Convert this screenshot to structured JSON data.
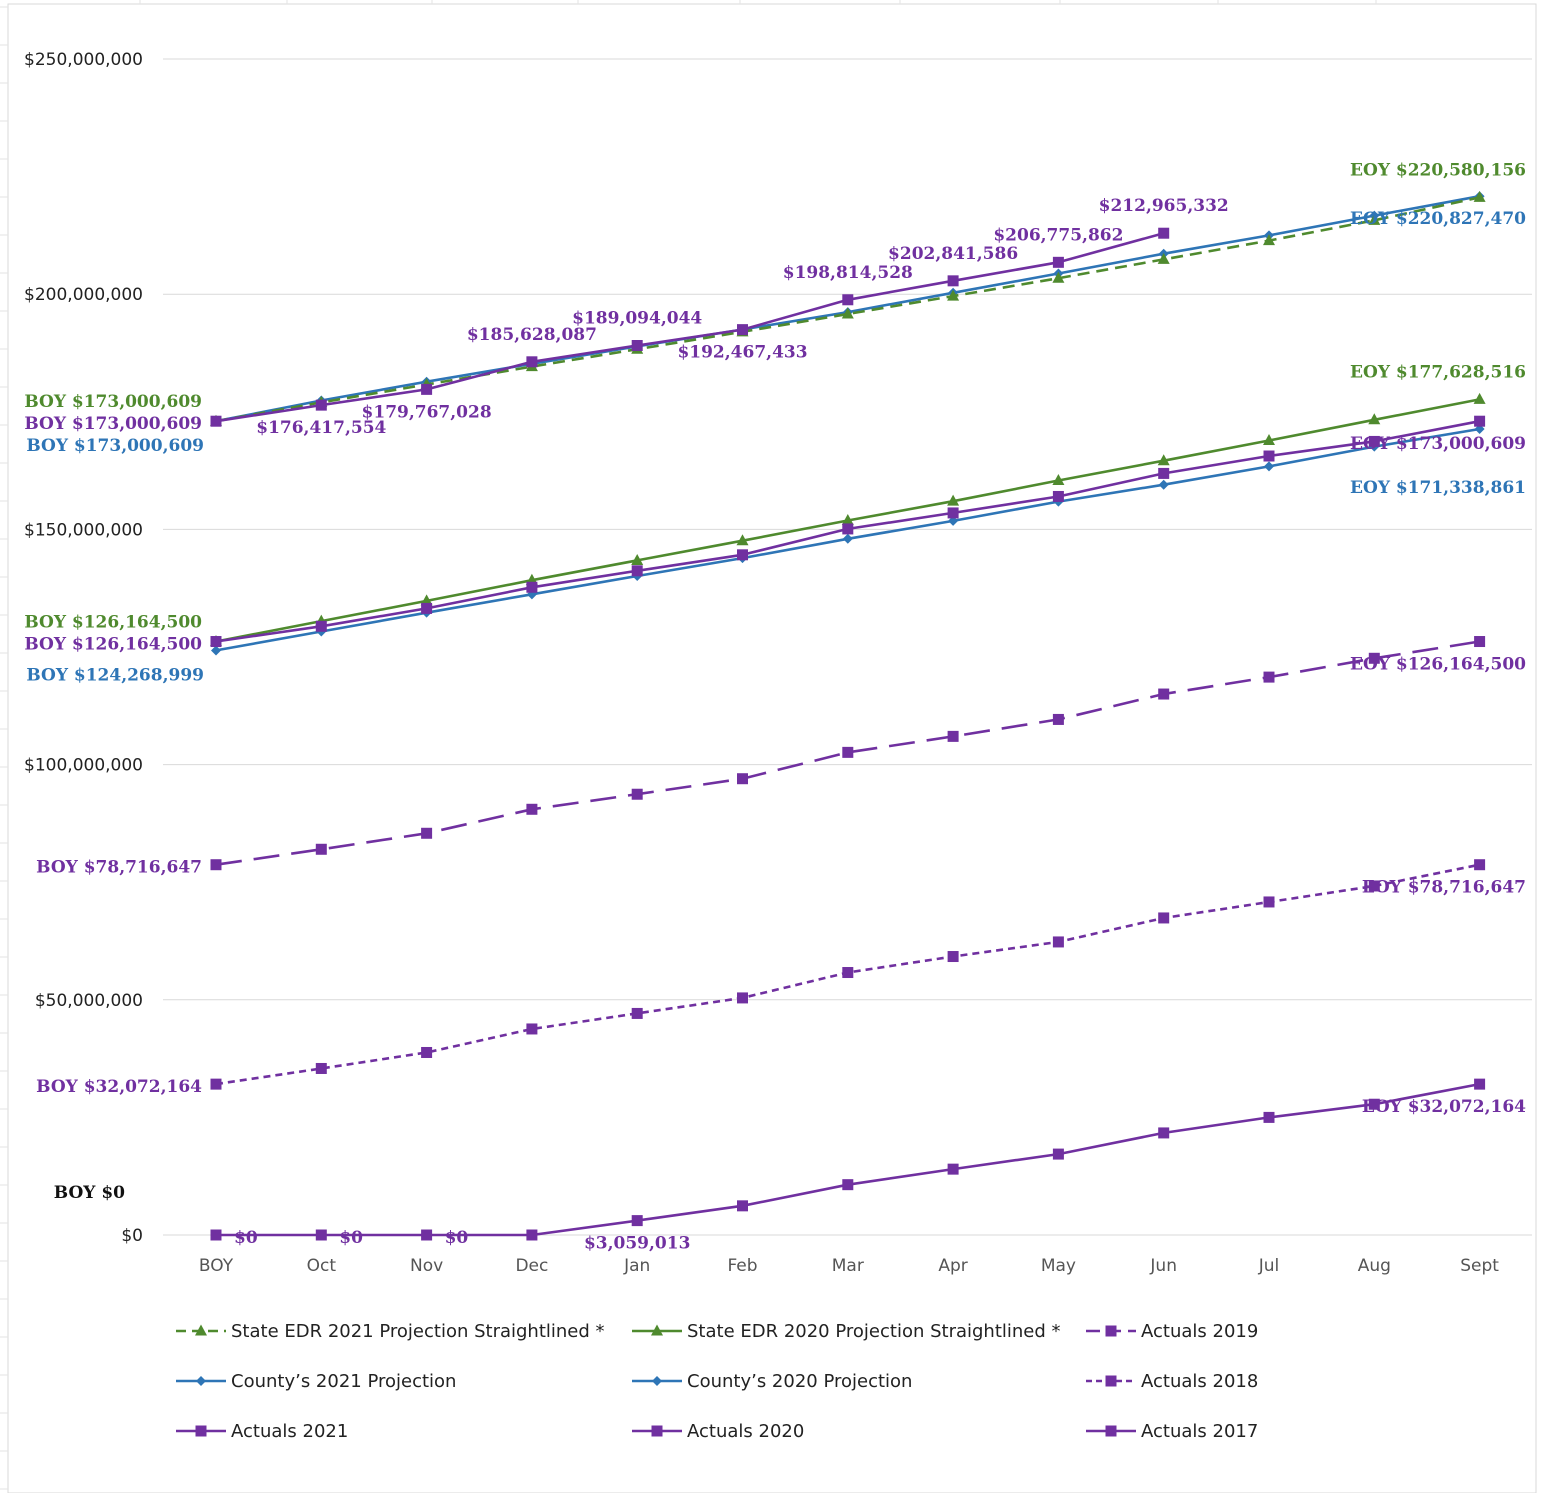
{
  "chart_data": {
    "type": "line",
    "categories": [
      "BOY",
      "Oct",
      "Nov",
      "Dec",
      "Jan",
      "Feb",
      "Mar",
      "Apr",
      "May",
      "Jun",
      "Jul",
      "Aug",
      "Sept"
    ],
    "ylim": [
      0,
      250000000
    ],
    "yticks": [
      0,
      50000000,
      100000000,
      150000000,
      200000000,
      250000000
    ],
    "ytick_labels": [
      "$0",
      "$50,000,000",
      "$100,000,000",
      "$150,000,000",
      "$200,000,000",
      "$250,000,000"
    ],
    "grid": true,
    "legend_position": "bottom",
    "colors": {
      "green": "#4f8a2e",
      "blue": "#2e75b6",
      "purple": "#7030a0"
    },
    "series": [
      {
        "name": "State EDR 2021 Projection Straightlined *",
        "color": "#4f8a2e",
        "dash": "dash",
        "marker": "triangle",
        "values": [
          173000609,
          177000000,
          180800000,
          184600000,
          188300000,
          192000000,
          195800000,
          199600000,
          203400000,
          207400000,
          211400000,
          215700000,
          220580156
        ]
      },
      {
        "name": "State EDR 2020 Projection Straightlined *",
        "color": "#4f8a2e",
        "dash": "solid",
        "marker": "triangle",
        "values": [
          126164500,
          130500000,
          134800000,
          139200000,
          143400000,
          147600000,
          151900000,
          156000000,
          160400000,
          164600000,
          168900000,
          173300000,
          177628516
        ]
      },
      {
        "name": "Actuals 2019",
        "color": "#7030a0",
        "dash": "longdash",
        "marker": "square",
        "values": [
          78716647,
          82000000,
          85400000,
          90500000,
          93700000,
          97000000,
          102600000,
          106000000,
          109600000,
          115000000,
          118600000,
          122600000,
          126164500
        ]
      },
      {
        "name": "County’s 2021 Projection",
        "color": "#2e75b6",
        "dash": "solid",
        "marker": "diamond",
        "values": [
          173000609,
          177400000,
          181400000,
          185200000,
          188900000,
          192500000,
          196200000,
          200300000,
          204400000,
          208600000,
          212500000,
          216700000,
          220827470
        ]
      },
      {
        "name": "County’s 2020 Projection",
        "color": "#2e75b6",
        "dash": "solid",
        "marker": "diamond",
        "values": [
          124268999,
          128300000,
          132300000,
          136200000,
          140100000,
          143900000,
          148000000,
          151800000,
          155900000,
          159500000,
          163400000,
          167600000,
          171338861
        ]
      },
      {
        "name": "Actuals 2018",
        "color": "#7030a0",
        "dash": "shortdash",
        "marker": "square",
        "values": [
          32072164,
          35400000,
          38800000,
          43800000,
          47100000,
          50400000,
          55800000,
          59200000,
          62300000,
          67400000,
          70800000,
          74200000,
          78716647
        ]
      },
      {
        "name": "Actuals 2021",
        "color": "#7030a0",
        "dash": "solid",
        "marker": "square",
        "values": [
          173000609,
          176417554,
          179767028,
          185628087,
          189094044,
          192467433,
          198814528,
          202841586,
          206775862,
          212965332,
          null,
          null,
          null
        ]
      },
      {
        "name": "Actuals 2020",
        "color": "#7030a0",
        "dash": "solid",
        "marker": "square",
        "values": [
          126164500,
          129400000,
          133200000,
          137700000,
          141200000,
          144600000,
          150100000,
          153500000,
          157000000,
          161900000,
          165600000,
          168700000,
          173000609
        ]
      },
      {
        "name": "Actuals 2017",
        "color": "#7030a0",
        "dash": "solid",
        "marker": "square",
        "values": [
          0,
          0,
          0,
          0,
          3059013,
          6200000,
          10700000,
          14000000,
          17200000,
          21700000,
          25000000,
          27800000,
          32072164
        ]
      }
    ],
    "annotations": [
      {
        "text": "EOY $220,580,156",
        "color": "#4f8a2e",
        "x": "Sept",
        "y": 220580156,
        "pos": "above"
      },
      {
        "text": "EOY $220,827,470",
        "color": "#2e75b6",
        "x": "Sept",
        "y": 220827470,
        "pos": "below"
      },
      {
        "text": "$212,965,332",
        "color": "#7030a0",
        "x": "Jun",
        "y": 212965332,
        "pos": "above"
      },
      {
        "text": "$206,775,862",
        "color": "#7030a0",
        "x": "May",
        "y": 206775862,
        "pos": "above"
      },
      {
        "text": "$202,841,586",
        "color": "#7030a0",
        "x": "Apr",
        "y": 202841586,
        "pos": "above"
      },
      {
        "text": "$198,814,528",
        "color": "#7030a0",
        "x": "Mar",
        "y": 198814528,
        "pos": "above"
      },
      {
        "text": "$189,094,044",
        "color": "#7030a0",
        "x": "Jan",
        "y": 189094044,
        "pos": "above"
      },
      {
        "text": "$185,628,087",
        "color": "#7030a0",
        "x": "Dec",
        "y": 185628087,
        "pos": "above"
      },
      {
        "text": "$192,467,433",
        "color": "#7030a0",
        "x": "Feb",
        "y": 192467433,
        "pos": "below"
      },
      {
        "text": "$179,767,028",
        "color": "#7030a0",
        "x": "Nov",
        "y": 179767028,
        "pos": "below"
      },
      {
        "text": "$176,417,554",
        "color": "#7030a0",
        "x": "Oct",
        "y": 176417554,
        "pos": "below"
      },
      {
        "text": "BOY $173,000,609",
        "color": "#4f8a2e",
        "x": "BOY",
        "y": 173000609,
        "pos": "left-above"
      },
      {
        "text": "BOY $173,000,609",
        "color": "#7030a0",
        "x": "BOY",
        "y": 173000609,
        "pos": "left"
      },
      {
        "text": "BOY $173,000,609",
        "color": "#2e75b6",
        "x": "BOY",
        "y": 173000609,
        "pos": "left-below"
      },
      {
        "text": "EOY $177,628,516",
        "color": "#4f8a2e",
        "x": "Sept",
        "y": 177628516,
        "pos": "above"
      },
      {
        "text": "EOY $173,000,609",
        "color": "#7030a0",
        "x": "Sept",
        "y": 173000609,
        "pos": "below"
      },
      {
        "text": "EOY $171,338,861",
        "color": "#2e75b6",
        "x": "Sept",
        "y": 171338861,
        "pos": "below2"
      },
      {
        "text": "BOY $126,164,500",
        "color": "#4f8a2e",
        "x": "BOY",
        "y": 126164500,
        "pos": "left-above"
      },
      {
        "text": "BOY $126,164,500",
        "color": "#7030a0",
        "x": "BOY",
        "y": 126164500,
        "pos": "left"
      },
      {
        "text": "BOY $124,268,999",
        "color": "#2e75b6",
        "x": "BOY",
        "y": 124268999,
        "pos": "left-below"
      },
      {
        "text": "EOY $126,164,500",
        "color": "#7030a0",
        "x": "Sept",
        "y": 126164500,
        "pos": "below"
      },
      {
        "text": "BOY $78,716,647",
        "color": "#7030a0",
        "x": "BOY",
        "y": 78716647,
        "pos": "left"
      },
      {
        "text": "EOY $78,716,647",
        "color": "#7030a0",
        "x": "Sept",
        "y": 78716647,
        "pos": "below"
      },
      {
        "text": "BOY $32,072,164",
        "color": "#7030a0",
        "x": "BOY",
        "y": 32072164,
        "pos": "left"
      },
      {
        "text": "EOY $32,072,164",
        "color": "#7030a0",
        "x": "Sept",
        "y": 32072164,
        "pos": "below"
      },
      {
        "text": "BOY $0",
        "color": "#111111",
        "x": "BOY",
        "y": 0,
        "pos": "boy-zero"
      },
      {
        "text": "$0",
        "color": "#7030a0",
        "x": "BOY",
        "y": 0,
        "pos": "right-below"
      },
      {
        "text": "$0",
        "color": "#7030a0",
        "x": "Oct",
        "y": 0,
        "pos": "right-below"
      },
      {
        "text": "$0",
        "color": "#7030a0",
        "x": "Nov",
        "y": 0,
        "pos": "right-below"
      },
      {
        "text": "$3,059,013",
        "color": "#7030a0",
        "x": "Jan",
        "y": 3059013,
        "pos": "below"
      }
    ]
  }
}
